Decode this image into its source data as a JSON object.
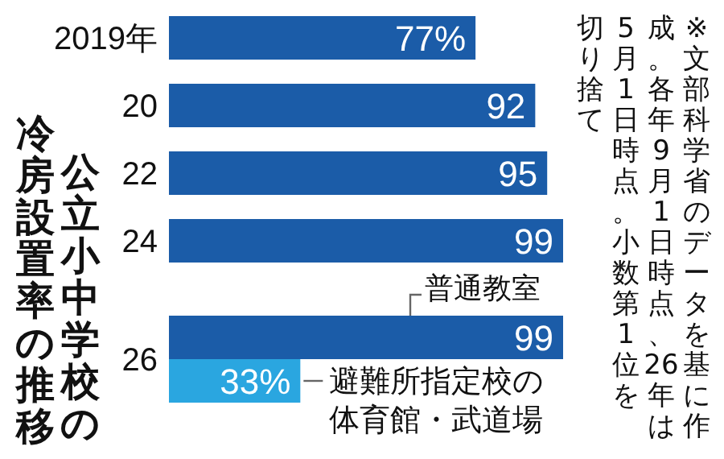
{
  "chart_data": {
    "type": "bar",
    "orientation": "horizontal",
    "title": "公立小中学校の",
    "subtitle": "冷房設置率の推移",
    "categories": [
      "2019年",
      "20",
      "22",
      "24",
      "26"
    ],
    "series": [
      {
        "name": "普通教室",
        "color": "#1b5ca8",
        "values": [
          77,
          92,
          95,
          99,
          99
        ],
        "value_labels": [
          "77%",
          "92",
          "95",
          "99",
          "99"
        ]
      },
      {
        "name": "避難所指定校の体育館・武道場",
        "color": "#2aa6e0",
        "values": [
          null,
          null,
          null,
          null,
          33
        ],
        "value_labels": [
          null,
          null,
          null,
          null,
          "33%"
        ]
      }
    ],
    "annotations": [
      "※文部科学省のデータを基に作",
      "成。各年9月1日時点、26年は",
      "5月1日時点。小数第1位を",
      "切り捨て"
    ]
  }
}
